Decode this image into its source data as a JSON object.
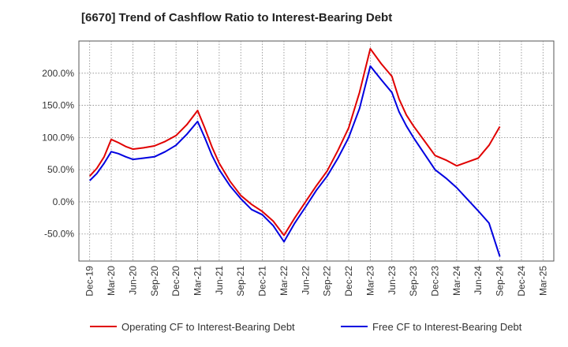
{
  "chart_data": {
    "type": "line",
    "title": "[6670]  Trend of Cashflow Ratio to Interest-Bearing Debt",
    "xlabel": "",
    "ylabel": "",
    "x_ticks": [
      "Dec-19",
      "Mar-20",
      "Jun-20",
      "Sep-20",
      "Dec-20",
      "Mar-21",
      "Jun-21",
      "Sep-21",
      "Dec-21",
      "Mar-22",
      "Jun-22",
      "Sep-22",
      "Dec-22",
      "Mar-23",
      "Jun-23",
      "Sep-23",
      "Dec-23",
      "Mar-24",
      "Jun-24",
      "Sep-24",
      "Dec-24",
      "Mar-25"
    ],
    "y_ticks": [
      "200.0%",
      "150.0%",
      "100.0%",
      "50.0%",
      "0.0%",
      "-50.0%"
    ],
    "ylim": [
      -92,
      250
    ],
    "grid": true,
    "legend_position": "bottom",
    "series": [
      {
        "name": "Operating CF to Interest-Bearing Debt",
        "color": "#e00000",
        "points": [
          [
            0,
            40
          ],
          [
            0.33,
            52
          ],
          [
            0.67,
            70
          ],
          [
            1,
            97
          ],
          [
            1.33,
            92
          ],
          [
            1.67,
            86
          ],
          [
            2,
            82
          ],
          [
            2.5,
            84
          ],
          [
            3,
            87
          ],
          [
            3.5,
            94
          ],
          [
            4,
            103
          ],
          [
            4.5,
            120
          ],
          [
            5,
            142
          ],
          [
            5.33,
            115
          ],
          [
            5.67,
            85
          ],
          [
            6,
            60
          ],
          [
            6.5,
            32
          ],
          [
            7,
            10
          ],
          [
            7.5,
            -4
          ],
          [
            8,
            -15
          ],
          [
            8.5,
            -30
          ],
          [
            9,
            -52
          ],
          [
            9.5,
            -25
          ],
          [
            10,
            0
          ],
          [
            10.5,
            25
          ],
          [
            11,
            48
          ],
          [
            11.5,
            80
          ],
          [
            12,
            115
          ],
          [
            12.5,
            170
          ],
          [
            13,
            238
          ],
          [
            13.5,
            215
          ],
          [
            14,
            195
          ],
          [
            14.33,
            160
          ],
          [
            14.67,
            135
          ],
          [
            15,
            118
          ],
          [
            15.5,
            95
          ],
          [
            16,
            72
          ],
          [
            16.5,
            65
          ],
          [
            17,
            56
          ],
          [
            17.5,
            62
          ],
          [
            18,
            68
          ],
          [
            18.5,
            88
          ],
          [
            19,
            117
          ]
        ]
      },
      {
        "name": "Free CF to Interest-Bearing Debt",
        "color": "#0000e0",
        "points": [
          [
            0,
            33
          ],
          [
            0.33,
            44
          ],
          [
            0.67,
            60
          ],
          [
            1,
            78
          ],
          [
            1.33,
            75
          ],
          [
            1.67,
            70
          ],
          [
            2,
            66
          ],
          [
            2.5,
            68
          ],
          [
            3,
            70
          ],
          [
            3.5,
            78
          ],
          [
            4,
            88
          ],
          [
            4.5,
            105
          ],
          [
            5,
            125
          ],
          [
            5.33,
            100
          ],
          [
            5.67,
            72
          ],
          [
            6,
            50
          ],
          [
            6.5,
            25
          ],
          [
            7,
            5
          ],
          [
            7.5,
            -12
          ],
          [
            8,
            -20
          ],
          [
            8.5,
            -37
          ],
          [
            9,
            -62
          ],
          [
            9.5,
            -33
          ],
          [
            10,
            -8
          ],
          [
            10.5,
            18
          ],
          [
            11,
            40
          ],
          [
            11.5,
            68
          ],
          [
            12,
            100
          ],
          [
            12.5,
            145
          ],
          [
            13,
            211
          ],
          [
            13.5,
            190
          ],
          [
            14,
            170
          ],
          [
            14.33,
            140
          ],
          [
            14.67,
            118
          ],
          [
            15,
            100
          ],
          [
            15.5,
            75
          ],
          [
            16,
            50
          ],
          [
            16.5,
            37
          ],
          [
            17,
            22
          ],
          [
            17.5,
            4
          ],
          [
            18,
            -14
          ],
          [
            18.5,
            -33
          ],
          [
            19,
            -85
          ]
        ]
      }
    ]
  }
}
